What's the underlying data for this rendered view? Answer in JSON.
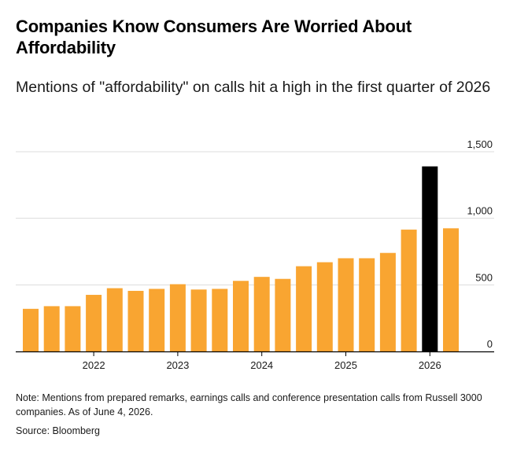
{
  "title": "Companies Know Consumers Are Worried About Affordability",
  "subtitle": "Mentions of \"affordability\" on calls hit a high in the first quarter of 2026",
  "note": "Note: Mentions from prepared remarks, earnings calls and conference presentation calls from Russell 3000 companies. As of June 4, 2026.",
  "source": "Source: Bloomberg",
  "colors": {
    "bar": "#f9a531",
    "highlight": "#000000",
    "grid": "#dcdcdc",
    "axis": "#000000"
  },
  "chart_data": {
    "type": "bar",
    "x": [
      "Q2 2021",
      "Q3 2021",
      "Q4 2021",
      "Q1 2022",
      "Q2 2022",
      "Q3 2022",
      "Q4 2022",
      "Q1 2023",
      "Q2 2023",
      "Q3 2023",
      "Q4 2023",
      "Q1 2024",
      "Q2 2024",
      "Q3 2024",
      "Q4 2024",
      "Q1 2025",
      "Q2 2025",
      "Q3 2025",
      "Q4 2025",
      "Q1 2026",
      "Q2 2026"
    ],
    "values": [
      320,
      340,
      340,
      425,
      475,
      455,
      470,
      505,
      465,
      470,
      530,
      560,
      545,
      640,
      670,
      700,
      700,
      740,
      915,
      1390,
      925
    ],
    "highlight_index": 19,
    "year_labels": [
      {
        "label": "2022",
        "index": 3
      },
      {
        "label": "2023",
        "index": 7
      },
      {
        "label": "2024",
        "index": 11
      },
      {
        "label": "2025",
        "index": 15
      },
      {
        "label": "2026",
        "index": 19
      }
    ],
    "y_ticks": [
      0,
      500,
      1000,
      1500
    ],
    "y_tick_labels": [
      "0",
      "500",
      "1,000",
      "1,500"
    ],
    "ylim": [
      0,
      1500
    ],
    "grid": true,
    "y_axis_position": "right"
  }
}
